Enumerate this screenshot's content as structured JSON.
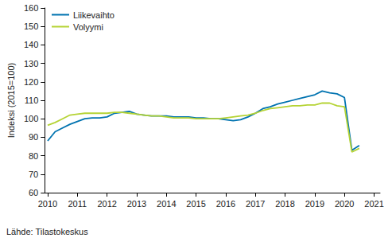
{
  "chart_data": {
    "type": "line",
    "y_label": "Indeksi (2015=100)",
    "source": "Lähde: Tilastokeskus",
    "x": [
      2010,
      2010.25,
      2010.5,
      2010.75,
      2011,
      2011.25,
      2011.5,
      2011.75,
      2012,
      2012.25,
      2012.5,
      2012.75,
      2013,
      2013.25,
      2013.5,
      2013.75,
      2014,
      2014.25,
      2014.5,
      2014.75,
      2015,
      2015.25,
      2015.5,
      2015.75,
      2016,
      2016.25,
      2016.5,
      2016.75,
      2017,
      2017.25,
      2017.5,
      2017.75,
      2018,
      2018.25,
      2018.5,
      2018.75,
      2019,
      2019.25,
      2019.5,
      2019.75,
      2020,
      2020.25,
      2020.5
    ],
    "series": [
      {
        "name": "Liikevaihto",
        "color": "#0073b0",
        "values": [
          88,
          93,
          95,
          97,
          98.5,
          100,
          100.5,
          100.5,
          101,
          103,
          103.5,
          104,
          102.5,
          102,
          101.5,
          101.5,
          101.5,
          101,
          101,
          101,
          100.5,
          100.5,
          100,
          100,
          99.5,
          99,
          99.5,
          101,
          103,
          105.5,
          106.5,
          108,
          109,
          110,
          111,
          112,
          113,
          115,
          114,
          113.5,
          111.5,
          83,
          85.5
        ]
      },
      {
        "name": "Volyymi",
        "color": "#b5d334",
        "values": [
          96.5,
          98,
          100,
          102,
          102.5,
          103,
          103,
          103,
          103,
          103.5,
          103.5,
          103,
          102.5,
          102,
          101.5,
          101.5,
          101,
          100.5,
          100.5,
          100.5,
          100,
          100,
          100,
          100,
          100.5,
          101,
          101.5,
          102,
          103,
          104.5,
          105.5,
          106,
          106.5,
          107,
          107,
          107.5,
          107.5,
          108.5,
          108.5,
          107,
          106.5,
          82,
          84
        ]
      }
    ],
    "xlim": [
      2009.9,
      2021.2
    ],
    "xticks": [
      2010,
      2011,
      2012,
      2013,
      2014,
      2015,
      2016,
      2017,
      2018,
      2019,
      2020,
      2021
    ],
    "ylim": [
      60,
      160
    ],
    "yticks": [
      60,
      70,
      80,
      90,
      100,
      110,
      120,
      130,
      140,
      150,
      160
    ],
    "grid": false,
    "legend": "upper left"
  }
}
